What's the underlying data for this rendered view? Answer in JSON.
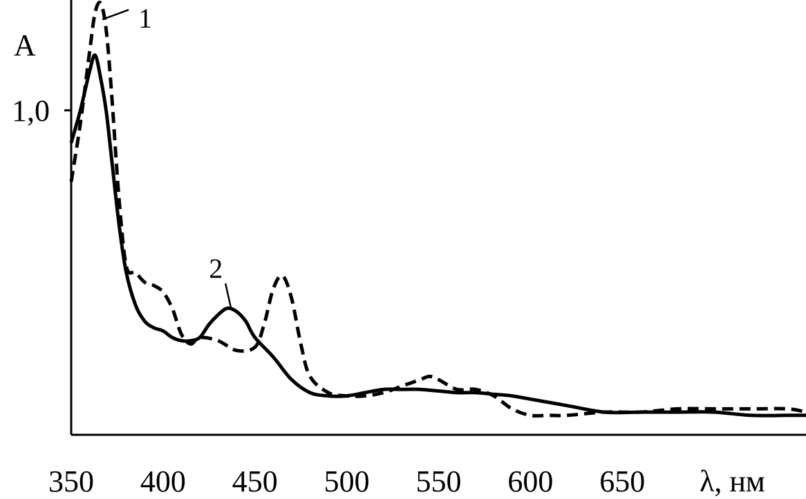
{
  "chart_data": {
    "type": "line",
    "ylabel": "A",
    "xlabel": "λ, нм",
    "x_ticks": [
      "350",
      "400",
      "450",
      "500",
      "550",
      "600",
      "650"
    ],
    "y_ticks": [
      {
        "value": 1.0,
        "label": "1,0"
      }
    ],
    "xlim": [
      350,
      750
    ],
    "ylim": [
      0,
      1.34
    ],
    "grid": false,
    "legend": "none",
    "series": [
      {
        "name": "1",
        "style": "dashed",
        "color": "#000000",
        "x": [
          350,
          355,
          360,
          363,
          366,
          369,
          372,
          376,
          380,
          385,
          390,
          395,
          400,
          405,
          410,
          415,
          420,
          430,
          440,
          450,
          455,
          460,
          465,
          470,
          475,
          480,
          490,
          500,
          510,
          520,
          530,
          540,
          545,
          550,
          560,
          570,
          580,
          590,
          600,
          610,
          620,
          640,
          660,
          680,
          700,
          720,
          740,
          750
        ],
        "y": [
          0.78,
          0.96,
          1.18,
          1.3,
          1.33,
          1.25,
          1.05,
          0.73,
          0.52,
          0.5,
          0.47,
          0.46,
          0.44,
          0.39,
          0.31,
          0.28,
          0.3,
          0.29,
          0.26,
          0.27,
          0.34,
          0.45,
          0.49,
          0.42,
          0.28,
          0.18,
          0.13,
          0.12,
          0.12,
          0.13,
          0.15,
          0.17,
          0.18,
          0.17,
          0.14,
          0.14,
          0.12,
          0.08,
          0.06,
          0.06,
          0.06,
          0.07,
          0.07,
          0.08,
          0.08,
          0.08,
          0.08,
          0.07
        ]
      },
      {
        "name": "2",
        "style": "solid",
        "color": "#000000",
        "x": [
          350,
          355,
          360,
          363,
          366,
          369,
          372,
          376,
          380,
          385,
          390,
          395,
          400,
          405,
          410,
          415,
          420,
          425,
          430,
          435,
          440,
          445,
          450,
          460,
          470,
          480,
          490,
          500,
          510,
          520,
          530,
          540,
          550,
          560,
          570,
          580,
          590,
          600,
          610,
          620,
          640,
          660,
          680,
          700,
          720,
          740,
          750
        ],
        "y": [
          0.9,
          1.0,
          1.12,
          1.17,
          1.1,
          1.0,
          0.85,
          0.65,
          0.5,
          0.4,
          0.35,
          0.33,
          0.32,
          0.3,
          0.29,
          0.29,
          0.3,
          0.34,
          0.37,
          0.39,
          0.38,
          0.35,
          0.3,
          0.24,
          0.17,
          0.13,
          0.12,
          0.12,
          0.13,
          0.14,
          0.14,
          0.14,
          0.135,
          0.13,
          0.13,
          0.125,
          0.12,
          0.11,
          0.1,
          0.09,
          0.07,
          0.07,
          0.07,
          0.07,
          0.06,
          0.06,
          0.06
        ]
      }
    ],
    "annotations": [
      {
        "text": "1",
        "series": "1",
        "at_x": 367,
        "at_y": 1.28
      },
      {
        "text": "2",
        "series": "2",
        "at_x": 437,
        "at_y": 0.39
      }
    ]
  }
}
